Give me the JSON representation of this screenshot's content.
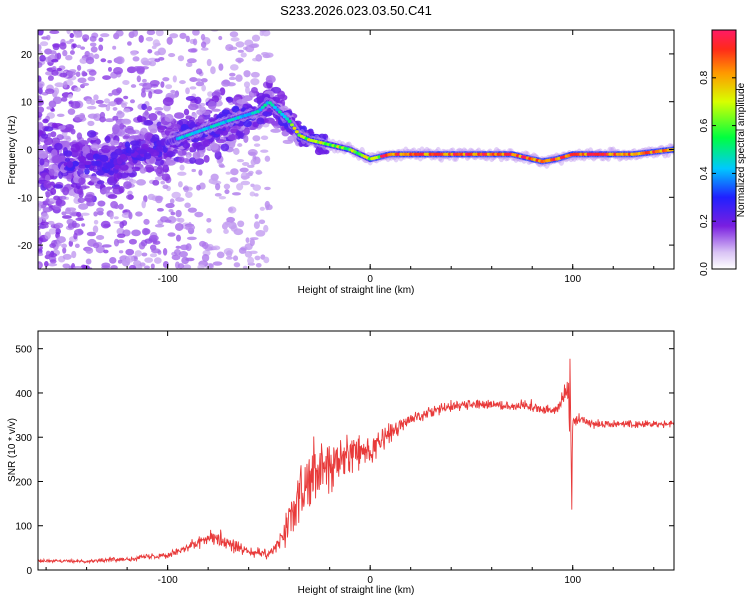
{
  "title": "S233.2026.023.03.50.C41",
  "chart_data": [
    {
      "type": "heatmap",
      "name": "spectrogram",
      "xlabel": "Height of straight line (km)",
      "ylabel": "Frequency (Hz)",
      "xlim": [
        -164,
        150
      ],
      "ylim": [
        -25,
        25
      ],
      "xticks": [
        -100,
        0,
        100
      ],
      "yticks": [
        -20,
        -10,
        0,
        10,
        20
      ],
      "ridge": [
        {
          "x": -130,
          "y": -3
        },
        {
          "x": -110,
          "y": 0
        },
        {
          "x": -90,
          "y": 3
        },
        {
          "x": -70,
          "y": 6
        },
        {
          "x": -55,
          "y": 8
        },
        {
          "x": -50,
          "y": 10
        },
        {
          "x": -45,
          "y": 8
        },
        {
          "x": -40,
          "y": 6
        },
        {
          "x": -35,
          "y": 3
        },
        {
          "x": -30,
          "y": 2
        },
        {
          "x": -20,
          "y": 1
        },
        {
          "x": -10,
          "y": 0
        },
        {
          "x": 0,
          "y": -2
        },
        {
          "x": 10,
          "y": -1
        },
        {
          "x": 40,
          "y": -1
        },
        {
          "x": 70,
          "y": -1
        },
        {
          "x": 75,
          "y": -1.5
        },
        {
          "x": 85,
          "y": -2.5
        },
        {
          "x": 92,
          "y": -2
        },
        {
          "x": 100,
          "y": -1
        },
        {
          "x": 130,
          "y": -1
        },
        {
          "x": 150,
          "y": 0
        }
      ],
      "colorbar": {
        "label": "Normalized spectral amplitude",
        "range": [
          0,
          1
        ],
        "ticks": [
          "0.0",
          "0.2",
          "0.4",
          "0.6",
          "0.8"
        ]
      }
    },
    {
      "type": "line",
      "name": "snr",
      "xlabel": "Height of straight line (km)",
      "ylabel": "SNR (10 * v/v)",
      "xlim": [
        -164,
        150
      ],
      "ylim": [
        0,
        540
      ],
      "xticks": [
        -100,
        0,
        100
      ],
      "yticks": [
        0,
        100,
        200,
        300,
        400,
        500
      ],
      "series": [
        {
          "name": "SNR",
          "color": "#e83a3a",
          "x": [
            -164,
            -140,
            -120,
            -100,
            -85,
            -78,
            -70,
            -60,
            -50,
            -45,
            -40,
            -35,
            -30,
            -25,
            -20,
            -15,
            -10,
            -5,
            0,
            10,
            20,
            30,
            40,
            50,
            60,
            70,
            80,
            90,
            95,
            98,
            99,
            100,
            102,
            105,
            110,
            120,
            130,
            140,
            150
          ],
          "values": [
            20,
            20,
            25,
            35,
            60,
            80,
            60,
            40,
            35,
            60,
            110,
            160,
            200,
            220,
            230,
            250,
            260,
            265,
            270,
            310,
            340,
            360,
            370,
            375,
            375,
            370,
            370,
            360,
            380,
            420,
            120,
            330,
            340,
            340,
            330,
            330,
            330,
            330,
            330
          ],
          "noise": [
            5,
            5,
            8,
            12,
            20,
            28,
            25,
            18,
            15,
            25,
            60,
            90,
            110,
            120,
            100,
            90,
            70,
            60,
            45,
            35,
            25,
            20,
            18,
            18,
            18,
            18,
            18,
            18,
            30,
            80,
            40,
            20,
            18,
            15,
            12,
            12,
            12,
            12,
            12
          ]
        }
      ]
    }
  ]
}
